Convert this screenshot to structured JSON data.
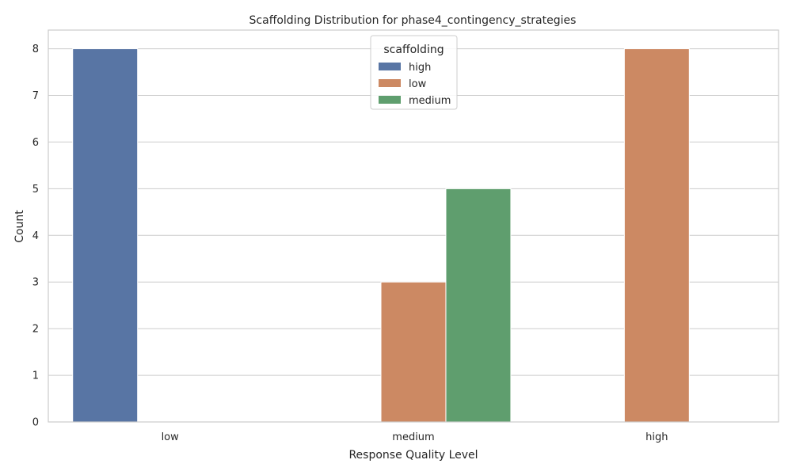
{
  "chart_data": {
    "type": "bar",
    "title": "Scaffolding Distribution for phase4_contingency_strategies",
    "xlabel": "Response Quality Level",
    "ylabel": "Count",
    "categories": [
      "low",
      "medium",
      "high"
    ],
    "ylim": [
      0,
      8.4
    ],
    "yticks": [
      0,
      1,
      2,
      3,
      4,
      5,
      6,
      7,
      8
    ],
    "grid": true,
    "legend": {
      "title": "scaffolding",
      "placement": "top-center"
    },
    "series": [
      {
        "name": "high",
        "color": "#5875a4",
        "values": [
          8,
          0,
          0
        ]
      },
      {
        "name": "low",
        "color": "#cc8963",
        "values": [
          0,
          3,
          8
        ]
      },
      {
        "name": "medium",
        "color": "#5f9e6e",
        "values": [
          0,
          5,
          0
        ]
      }
    ]
  }
}
